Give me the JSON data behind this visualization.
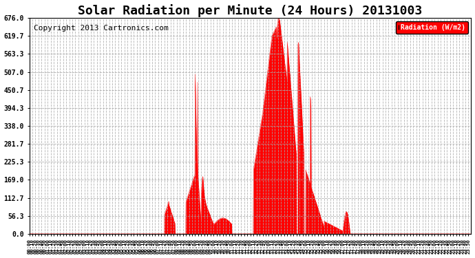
{
  "title": "Solar Radiation per Minute (24 Hours) 20131003",
  "copyright": "Copyright 2013 Cartronics.com",
  "legend_label": "Radiation (W/m2)",
  "ylim": [
    0.0,
    676.0
  ],
  "yticks": [
    0.0,
    56.3,
    112.7,
    169.0,
    225.3,
    281.7,
    338.0,
    394.3,
    450.7,
    507.0,
    563.3,
    619.7,
    676.0
  ],
  "bar_color": "#FF0000",
  "background_color": "#FFFFFF",
  "grid_color": "#AAAAAA",
  "title_color": "#000000",
  "legend_bg": "#FF0000",
  "legend_text_color": "#FFFFFF",
  "copyright_color": "#000000",
  "dashed_line_color": "#FF0000",
  "title_fontsize": 13,
  "copyright_fontsize": 8,
  "total_minutes": 1440
}
